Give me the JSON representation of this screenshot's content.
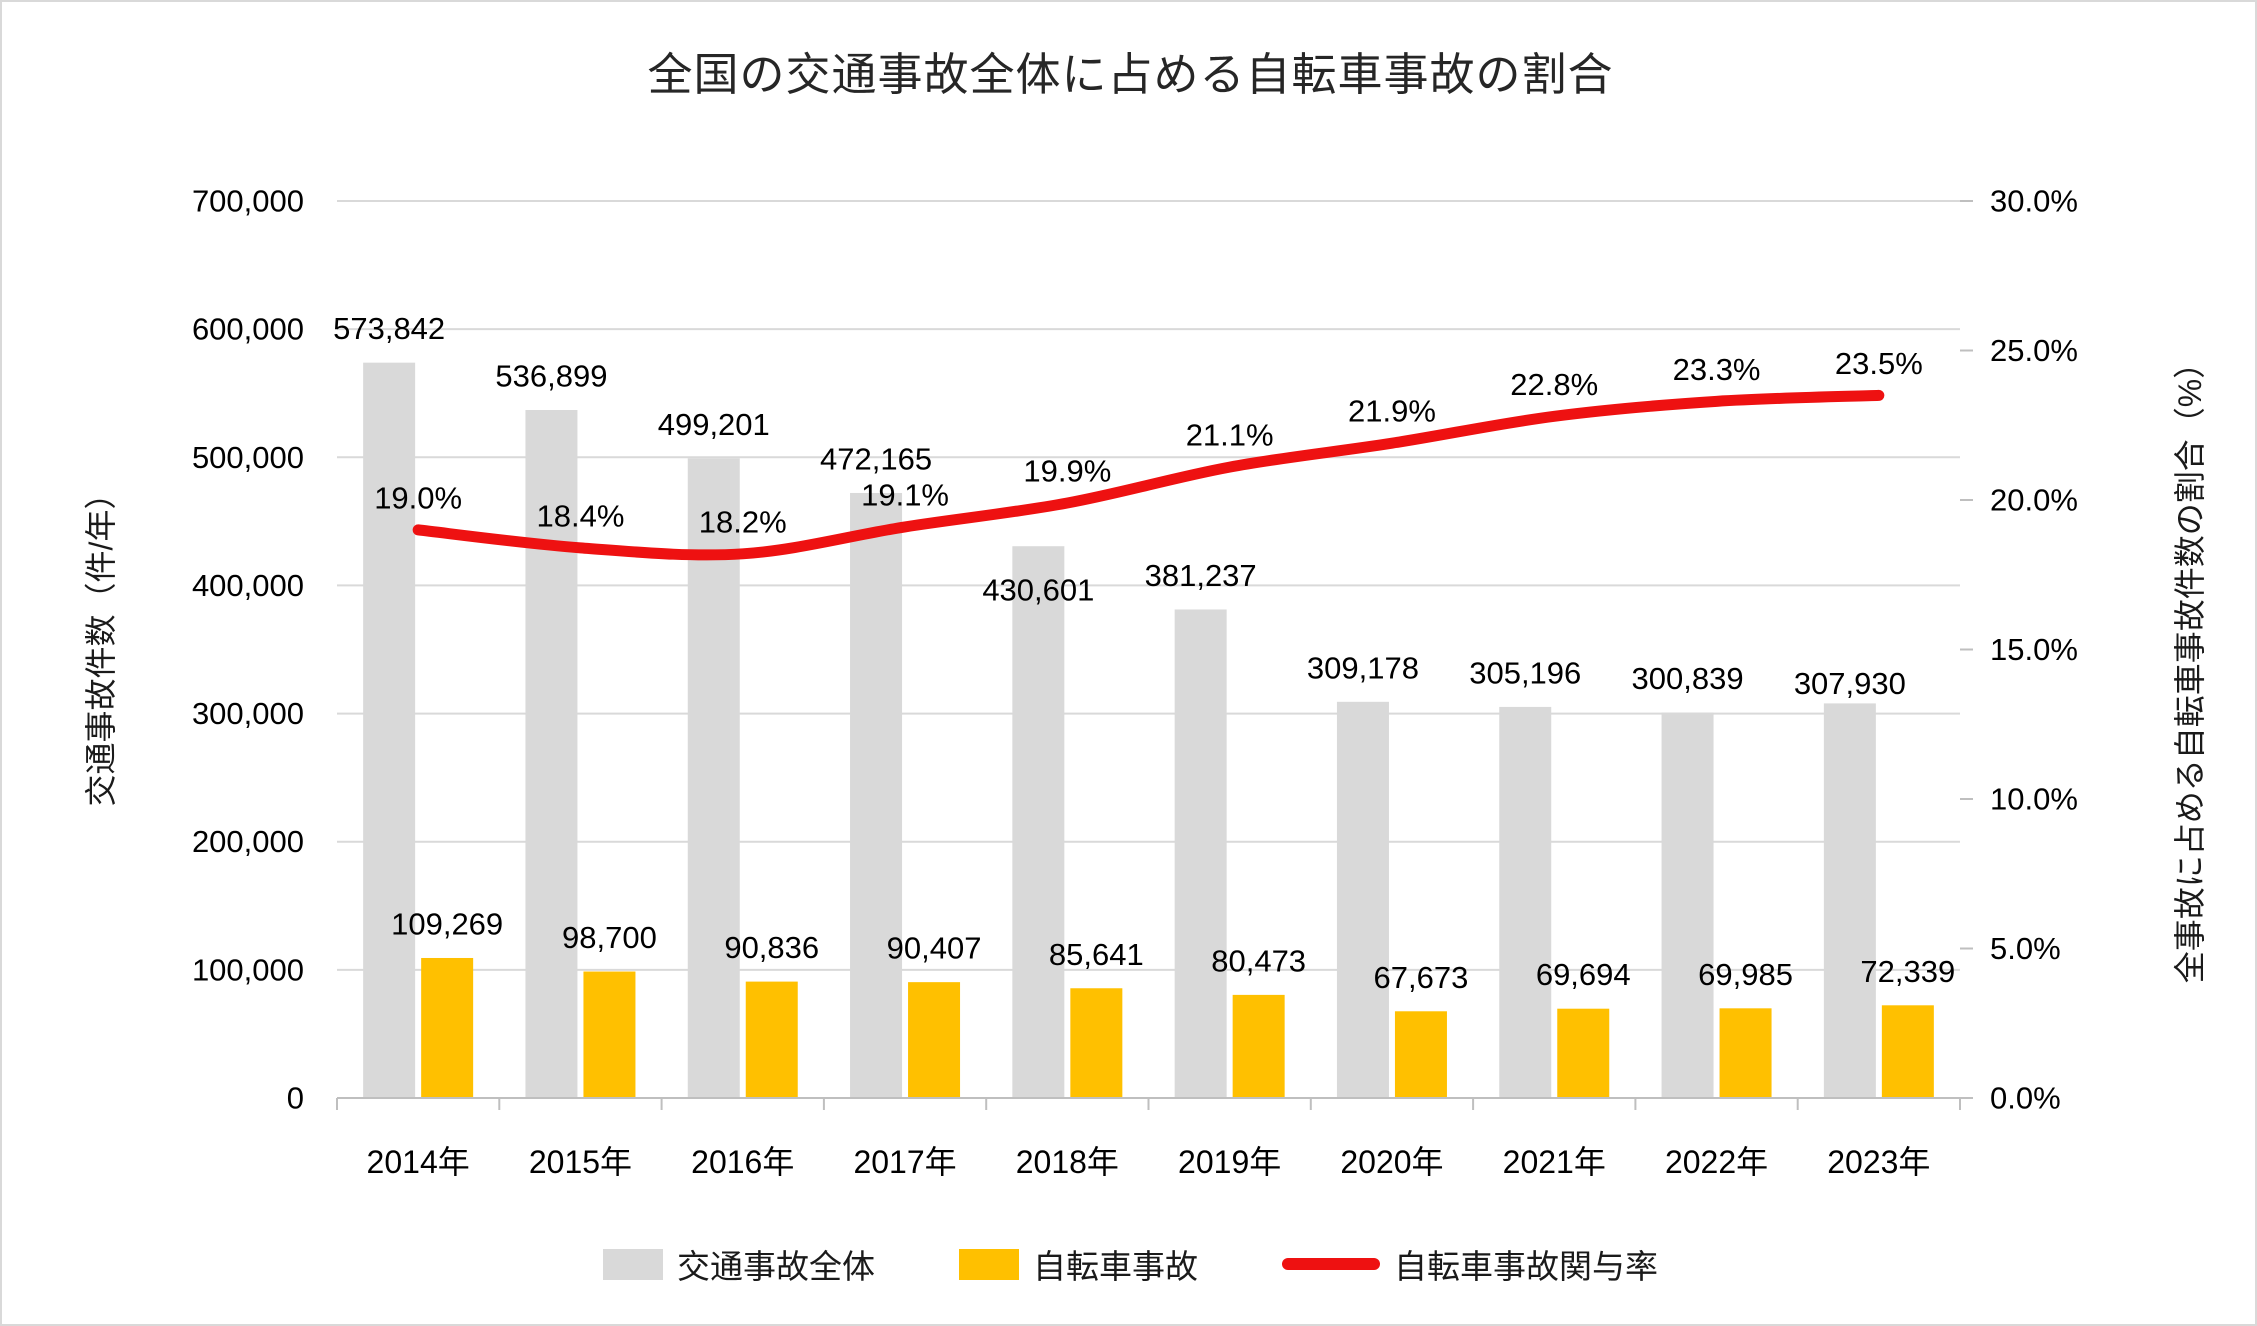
{
  "title": "全国の交通事故全体に占める自転車事故の割合",
  "chart_data": {
    "type": "combo-bar-line",
    "title": "全国の交通事故全体に占める自転車事故の割合",
    "categories": [
      "2014年",
      "2015年",
      "2016年",
      "2017年",
      "2018年",
      "2019年",
      "2020年",
      "2021年",
      "2022年",
      "2023年"
    ],
    "series": [
      {
        "name": "交通事故全体",
        "type": "bar",
        "axis": "left",
        "color": "#d9d9d9",
        "values": [
          573842,
          536899,
          499201,
          472165,
          430601,
          381237,
          309178,
          305196,
          300839,
          307930
        ],
        "labels": [
          "573,842",
          "536,899",
          "499,201",
          "472,165",
          "430,601",
          "381,237",
          "309,178",
          "305,196",
          "300,839",
          "307,930"
        ],
        "label_overrides": {
          "4": 44,
          "9": -20
        }
      },
      {
        "name": "自転車事故",
        "type": "bar",
        "axis": "left",
        "color": "#ffc000",
        "values": [
          109269,
          98700,
          90836,
          90407,
          85641,
          80473,
          67673,
          69694,
          69985,
          72339
        ],
        "labels": [
          "109,269",
          "98,700",
          "90,836",
          "90,407",
          "85,641",
          "80,473",
          "67,673",
          "69,694",
          "69,985",
          "72,339"
        ],
        "label_overrides": {}
      },
      {
        "name": "自転車事故関与率",
        "type": "line",
        "axis": "right",
        "color": "#ee1111",
        "smooth": true,
        "values": [
          19.0,
          18.4,
          18.2,
          19.1,
          19.9,
          21.1,
          21.9,
          22.8,
          23.3,
          23.5
        ],
        "labels": [
          "19.0%",
          "18.4%",
          "18.2%",
          "19.1%",
          "19.9%",
          "21.1%",
          "21.9%",
          "22.8%",
          "23.3%",
          "23.5%"
        ],
        "label_overrides": {}
      }
    ],
    "left_axis": {
      "title": "交通事故件数（件/年）",
      "min": 0,
      "max": 700000,
      "step": 100000,
      "tick_labels": [
        "0",
        "100,000",
        "200,000",
        "300,000",
        "400,000",
        "500,000",
        "600,000",
        "700,000"
      ]
    },
    "right_axis": {
      "title": "全事故に占める自転車事故件数の割合（%）",
      "min": 0,
      "max": 30,
      "step": 5,
      "tick_labels": [
        "0.0%",
        "5.0%",
        "10.0%",
        "15.0%",
        "20.0%",
        "25.0%",
        "30.0%"
      ]
    },
    "legend": [
      "交通事故全体",
      "自転車事故",
      "自転車事故関与率"
    ],
    "legend_position": "bottom",
    "grid": true,
    "colors": {
      "gridline": "#d9d9d9",
      "axis_line": "#bfbfbf",
      "text": "#000000",
      "title_text": "#262626"
    }
  }
}
